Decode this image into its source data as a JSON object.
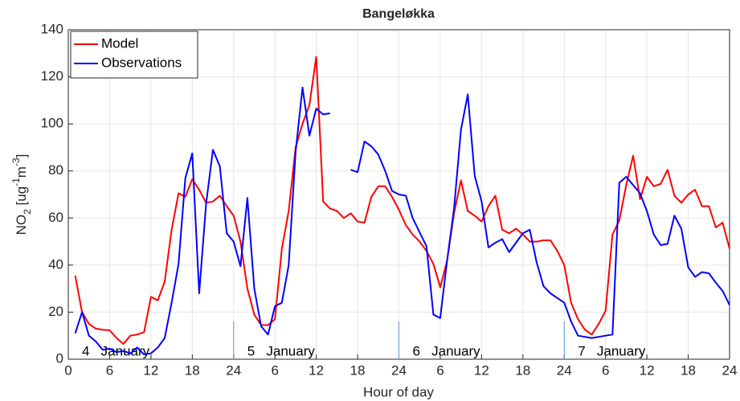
{
  "chart_data": {
    "type": "line",
    "title": "Bangeløkka",
    "xlabel": "Hour of day",
    "ylabel": [
      "NO",
      "2",
      " [ug",
      "-1",
      "m",
      "-3",
      "]"
    ],
    "annotations": [
      "4   January",
      "5   January",
      "6   January",
      "7   January"
    ],
    "day_boundaries": [
      24,
      48,
      72
    ],
    "x": [
      1,
      2,
      3,
      4,
      5,
      6,
      7,
      8,
      9,
      10,
      11,
      12,
      13,
      14,
      15,
      16,
      17,
      18,
      19,
      20,
      21,
      22,
      23,
      24,
      25,
      26,
      27,
      28,
      29,
      30,
      31,
      32,
      33,
      34,
      35,
      36,
      37,
      38,
      39,
      40,
      41,
      42,
      43,
      44,
      45,
      46,
      47,
      48,
      49,
      50,
      51,
      52,
      53,
      54,
      55,
      56,
      57,
      58,
      59,
      60,
      61,
      62,
      63,
      64,
      65,
      66,
      67,
      68,
      69,
      70,
      71,
      72,
      73,
      74,
      75,
      76,
      77,
      78,
      79,
      80,
      81,
      82,
      83,
      84,
      85,
      86,
      87,
      88,
      89,
      90,
      91,
      92,
      93,
      94,
      95,
      96
    ],
    "series": [
      {
        "name": "Model",
        "color": "#ff0000",
        "values": [
          35.5,
          20,
          15,
          13,
          12.5,
          12.3,
          9,
          6.5,
          10,
          10.5,
          11.5,
          26.5,
          25,
          33,
          55,
          70.5,
          69,
          76.5,
          72,
          66.5,
          67,
          69.5,
          65,
          61,
          50,
          30,
          19,
          14.5,
          14.5,
          17,
          47,
          63,
          90,
          100,
          108,
          128.5,
          67,
          64,
          63,
          60,
          62,
          58.5,
          58,
          69,
          73.5,
          73.5,
          69,
          63.5,
          57,
          53,
          50,
          46,
          40.5,
          30.5,
          42,
          62,
          76,
          63,
          61,
          58.5,
          65,
          69.5,
          55,
          53.5,
          55.5,
          53,
          50,
          50,
          50.5,
          50.5,
          46,
          40,
          24,
          17,
          12.5,
          10.5,
          15,
          20.5,
          53,
          59,
          74,
          86.5,
          68,
          77.5,
          73.5,
          74.5,
          80.5,
          69.5,
          66.5,
          70,
          72,
          65,
          65,
          56,
          58,
          47
        ]
      },
      {
        "name": "Observations",
        "color": "#0000ff",
        "values": [
          11,
          20,
          10,
          7.5,
          4,
          4.5,
          3,
          3.5,
          2.5,
          5,
          2,
          2.5,
          5,
          9,
          24,
          40.5,
          77,
          87.5,
          28,
          66,
          89,
          82,
          53.5,
          50,
          39.5,
          68.5,
          30,
          14,
          10.5,
          22.5,
          24,
          40,
          88,
          115.5,
          95,
          106.5,
          104,
          104.5,
          null,
          null,
          80.5,
          79.5,
          92.5,
          90.5,
          87,
          80,
          71.5,
          70,
          69.5,
          60,
          54,
          48,
          19,
          17.5,
          42,
          64,
          97.5,
          112.5,
          78,
          67,
          47.5,
          49.5,
          51,
          45.5,
          49.5,
          53.5,
          55,
          41,
          31,
          28,
          26,
          24,
          16,
          10,
          9.5,
          9,
          9.5,
          10,
          10.5,
          75,
          77.5,
          74,
          70.5,
          63,
          53,
          48.5,
          49,
          61,
          55.5,
          39,
          35,
          37,
          36.5,
          32.5,
          29,
          23
        ]
      }
    ],
    "xlim": [
      0,
      96
    ],
    "xticks": [
      0,
      6,
      12,
      18,
      24,
      {
        "value": 30,
        "label": "6"
      },
      {
        "value": 36,
        "label": "12"
      },
      {
        "value": 42,
        "label": "18"
      },
      {
        "value": 48,
        "label": "24"
      },
      {
        "value": 54,
        "label": "6"
      },
      {
        "value": 60,
        "label": "12"
      },
      {
        "value": 66,
        "label": "18"
      },
      {
        "value": 72,
        "label": "24"
      },
      {
        "value": 78,
        "label": "6"
      },
      {
        "value": 84,
        "label": "12"
      },
      {
        "value": 90,
        "label": "18"
      },
      {
        "value": 96,
        "label": "24"
      }
    ],
    "ylim": [
      0,
      140
    ],
    "yticks": [
      0,
      20,
      40,
      60,
      80,
      100,
      120,
      140
    ],
    "grid": true,
    "legend": "upper-left"
  }
}
